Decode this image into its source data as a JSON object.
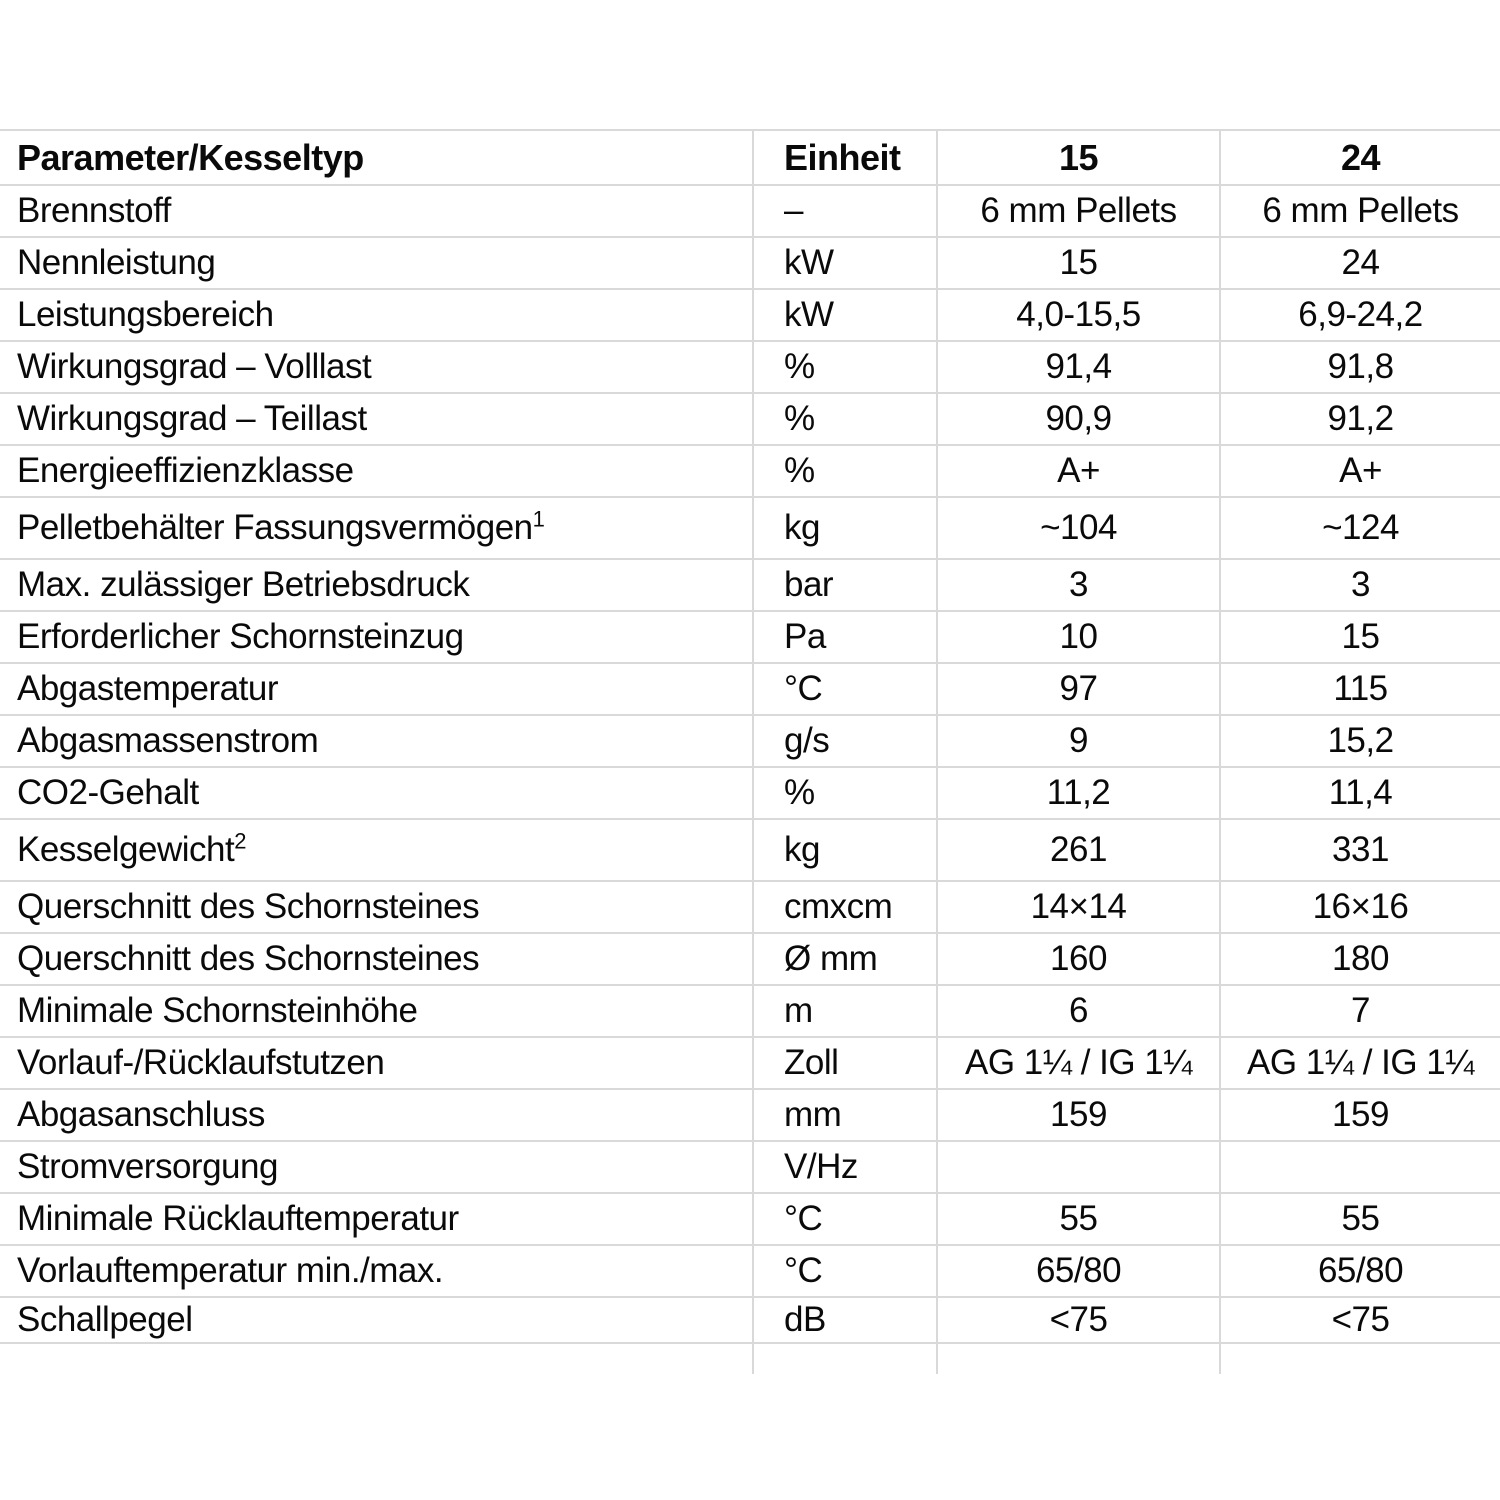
{
  "table": {
    "grid_color": "#d9d9d9",
    "columns": [
      {
        "label": "Parameter/Kesseltyp"
      },
      {
        "label": "Einheit"
      },
      {
        "label": "15"
      },
      {
        "label": "24"
      }
    ],
    "rows": [
      {
        "param": "Brennstoff",
        "sup": "",
        "unit": "–",
        "v15": "6 mm Pellets",
        "v24": "6 mm Pellets"
      },
      {
        "param": "Nennleistung",
        "sup": "",
        "unit": "kW",
        "v15": "15",
        "v24": "24"
      },
      {
        "param": "Leistungsbereich",
        "sup": "",
        "unit": "kW",
        "v15": "4,0-15,5",
        "v24": "6,9-24,2"
      },
      {
        "param": "Wirkungsgrad – Volllast",
        "sup": "",
        "unit": "%",
        "v15": "91,4",
        "v24": "91,8"
      },
      {
        "param": "Wirkungsgrad – Teillast",
        "sup": "",
        "unit": "%",
        "v15": "90,9",
        "v24": "91,2"
      },
      {
        "param": "Energieeffizienzklasse",
        "sup": "",
        "unit": "%",
        "v15": "A+",
        "v24": "A+"
      },
      {
        "param": "Pelletbehälter Fassungsvermögen",
        "sup": "1",
        "unit": "kg",
        "v15": "~104",
        "v24": "~124"
      },
      {
        "param": "Max. zulässiger Betriebsdruck",
        "sup": "",
        "unit": "bar",
        "v15": "3",
        "v24": "3"
      },
      {
        "param": "Erforderlicher Schornsteinzug",
        "sup": "",
        "unit": "Pa",
        "v15": "10",
        "v24": "15"
      },
      {
        "param": "Abgastemperatur",
        "sup": "",
        "unit": "°C",
        "v15": "97",
        "v24": "115"
      },
      {
        "param": "Abgasmassenstrom",
        "sup": "",
        "unit": "g/s",
        "v15": "9",
        "v24": "15,2"
      },
      {
        "param": "CO2-Gehalt",
        "sup": "",
        "unit": "%",
        "v15": "11,2",
        "v24": "11,4"
      },
      {
        "param": "Kesselgewicht",
        "sup": "2",
        "unit": "kg",
        "v15": "261",
        "v24": "331"
      },
      {
        "param": "Querschnitt des Schornsteines",
        "sup": "",
        "unit": "cmxcm",
        "v15": "14×14",
        "v24": "16×16"
      },
      {
        "param": "Querschnitt des Schornsteines",
        "sup": "",
        "unit": "Ø mm",
        "v15": "160",
        "v24": "180"
      },
      {
        "param": "Minimale Schornsteinhöhe",
        "sup": "",
        "unit": "m",
        "v15": "6",
        "v24": "7"
      },
      {
        "param": "Vorlauf-/Rücklaufstutzen",
        "sup": "",
        "unit": "Zoll",
        "v15": "AG 1¼ / IG 1¼",
        "v24": "AG 1¼ / IG 1¼"
      },
      {
        "param": "Abgasanschluss",
        "sup": "",
        "unit": "mm",
        "v15": "159",
        "v24": "159"
      },
      {
        "param": "Stromversorgung",
        "sup": "",
        "unit": "V/Hz",
        "v15": "",
        "v24": ""
      },
      {
        "param": "Minimale Rücklauftemperatur",
        "sup": "",
        "unit": "°C",
        "v15": "55",
        "v24": "55"
      },
      {
        "param": "Vorlauftemperatur min./max.",
        "sup": "",
        "unit": "°C",
        "v15": "65/80",
        "v24": "65/80"
      },
      {
        "param": "Schallpegel",
        "sup": "",
        "unit": "dB",
        "v15": "<75",
        "v24": "<75"
      }
    ]
  }
}
